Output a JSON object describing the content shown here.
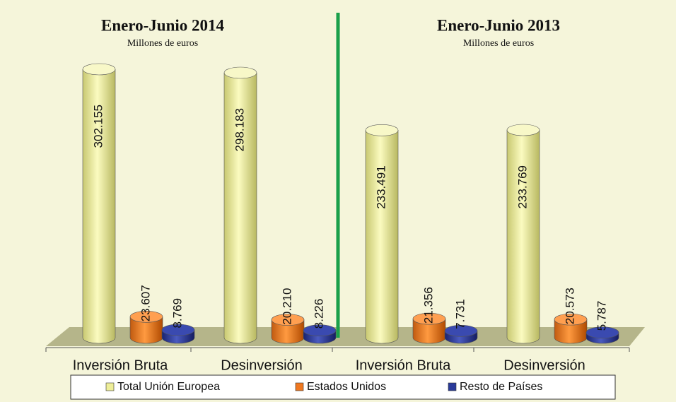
{
  "chart_data": {
    "type": "bar",
    "legend": [
      {
        "name": "Total Unión Europea",
        "color": "#eeee99"
      },
      {
        "name": "Estados Unidos",
        "color": "#f07820"
      },
      {
        "name": "Resto de Países",
        "color": "#2a3a9a"
      }
    ],
    "panels": [
      {
        "title": "Enero-Junio 2014",
        "subtitle": "Millones de euros",
        "categories": [
          "Inversión Bruta",
          "Desinversión"
        ],
        "series": [
          {
            "values": [
              302155,
              298183
            ],
            "value_labels": [
              "302.155",
              "298.183"
            ]
          },
          {
            "values": [
              23607,
              20210
            ],
            "value_labels": [
              "23.607",
              "20.210"
            ]
          },
          {
            "values": [
              8769,
              8226
            ],
            "value_labels": [
              "8.769",
              "8.226"
            ]
          }
        ]
      },
      {
        "title": "Enero-Junio 2013",
        "subtitle": "Millones de euros",
        "categories": [
          "Inversión Bruta",
          "Desinversión"
        ],
        "series": [
          {
            "values": [
              233491,
              233769
            ],
            "value_labels": [
              "233.491",
              "233.769"
            ]
          },
          {
            "values": [
              21356,
              20573
            ],
            "value_labels": [
              "21.356",
              "20.573"
            ]
          },
          {
            "values": [
              7731,
              5787
            ],
            "value_labels": [
              "7.731",
              "5.787"
            ]
          }
        ]
      }
    ]
  }
}
